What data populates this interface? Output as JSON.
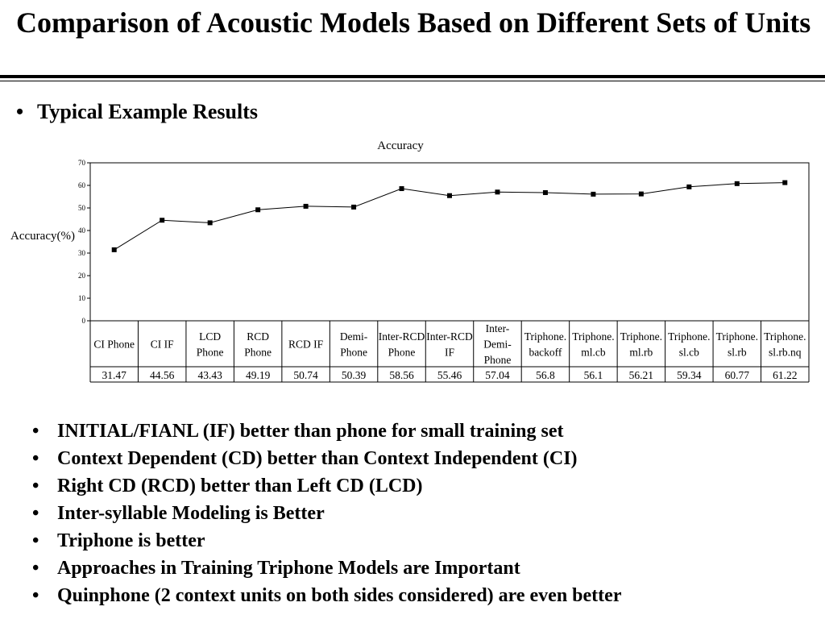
{
  "slide": {
    "title": "Comparison of Acoustic Models Based on Different Sets of Units",
    "subheading": "Typical Example Results",
    "bullets": [
      "INITIAL/FIANL (IF) better than phone for small training set",
      "Context Dependent (CD) better than Context Independent (CI)",
      "Right CD (RCD) better than Left CD (LCD)",
      "Inter-syllable Modeling is Better",
      "Triphone is better",
      "Approaches in Training Triphone Models are Important",
      "Quinphone (2 context units on both sides considered) are even better"
    ]
  },
  "chart_data": {
    "type": "line",
    "title": "Accuracy",
    "ylabel": "Accuracy(%)",
    "xlabel": "",
    "ylim": [
      0,
      70
    ],
    "yticks": [
      0,
      10,
      20,
      30,
      40,
      50,
      60,
      70
    ],
    "grid": false,
    "legend": "none",
    "marker": "square",
    "line_color": "#000000",
    "categories": [
      [
        "CI Phone"
      ],
      [
        "CI IF"
      ],
      [
        "LCD",
        "Phone"
      ],
      [
        "RCD",
        "Phone"
      ],
      [
        "RCD IF"
      ],
      [
        "Demi-",
        "Phone"
      ],
      [
        "Inter-RCD",
        "Phone"
      ],
      [
        "Inter-RCD",
        "IF"
      ],
      [
        "Inter-",
        "Demi-",
        "Phone"
      ],
      [
        "Triphone.",
        "backoff"
      ],
      [
        "Triphone.",
        "ml.cb"
      ],
      [
        "Triphone.",
        "ml.rb"
      ],
      [
        "Triphone.",
        "sl.cb"
      ],
      [
        "Triphone.",
        "sl.rb"
      ],
      [
        "Triphone.",
        "sl.rb.nq"
      ]
    ],
    "series": [
      {
        "values": [
          31.47,
          44.56,
          43.43,
          49.19,
          50.74,
          50.39,
          58.56,
          55.46,
          57.04,
          56.8,
          56.1,
          56.21,
          59.34,
          60.77,
          61.22
        ],
        "labels": [
          "31.47",
          "44.56",
          "43.43",
          "49.19",
          "50.74",
          "50.39",
          "58.56",
          "55.46",
          "57.04",
          "56.8",
          "56.1",
          "56.21",
          "59.34",
          "60.77",
          "61.22"
        ]
      }
    ]
  }
}
